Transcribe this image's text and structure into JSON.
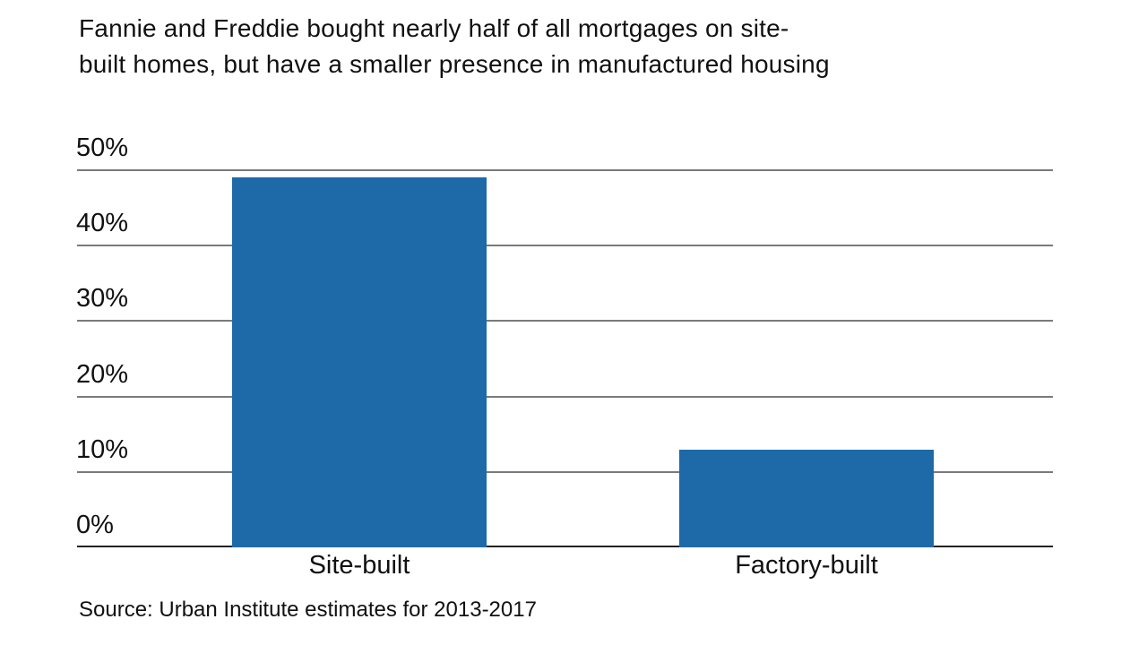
{
  "page": {
    "title_lines": [
      "Fannie and Freddie bought nearly half of all mortgages on site-",
      "built homes, but have a smaller presence in manufactured housing"
    ],
    "source": "Source: Urban Institute estimates for 2013-2017"
  },
  "chart_data": {
    "type": "bar",
    "title": "Fannie and Freddie bought nearly half of all mortgages on site-built homes, but have a smaller presence in manufactured housing",
    "categories": [
      "Site-built",
      "Factory-built"
    ],
    "values": [
      49,
      13
    ],
    "xlabel": "",
    "ylabel": "",
    "ylim": [
      0,
      50
    ],
    "yticks": [
      0,
      10,
      20,
      30,
      40,
      50
    ],
    "ytick_labels": [
      "0%",
      "10%",
      "20%",
      "30%",
      "40%",
      "50%"
    ],
    "grid": true,
    "legend": "none",
    "bar_color": "#1e69a8",
    "source": "Source: Urban Institute estimates for 2013-2017"
  },
  "colors": {
    "bar": "#1e69a8",
    "gridline": "#7a7a7a",
    "axis_line": "#222222",
    "text": "#111111",
    "background": "#ffffff"
  }
}
